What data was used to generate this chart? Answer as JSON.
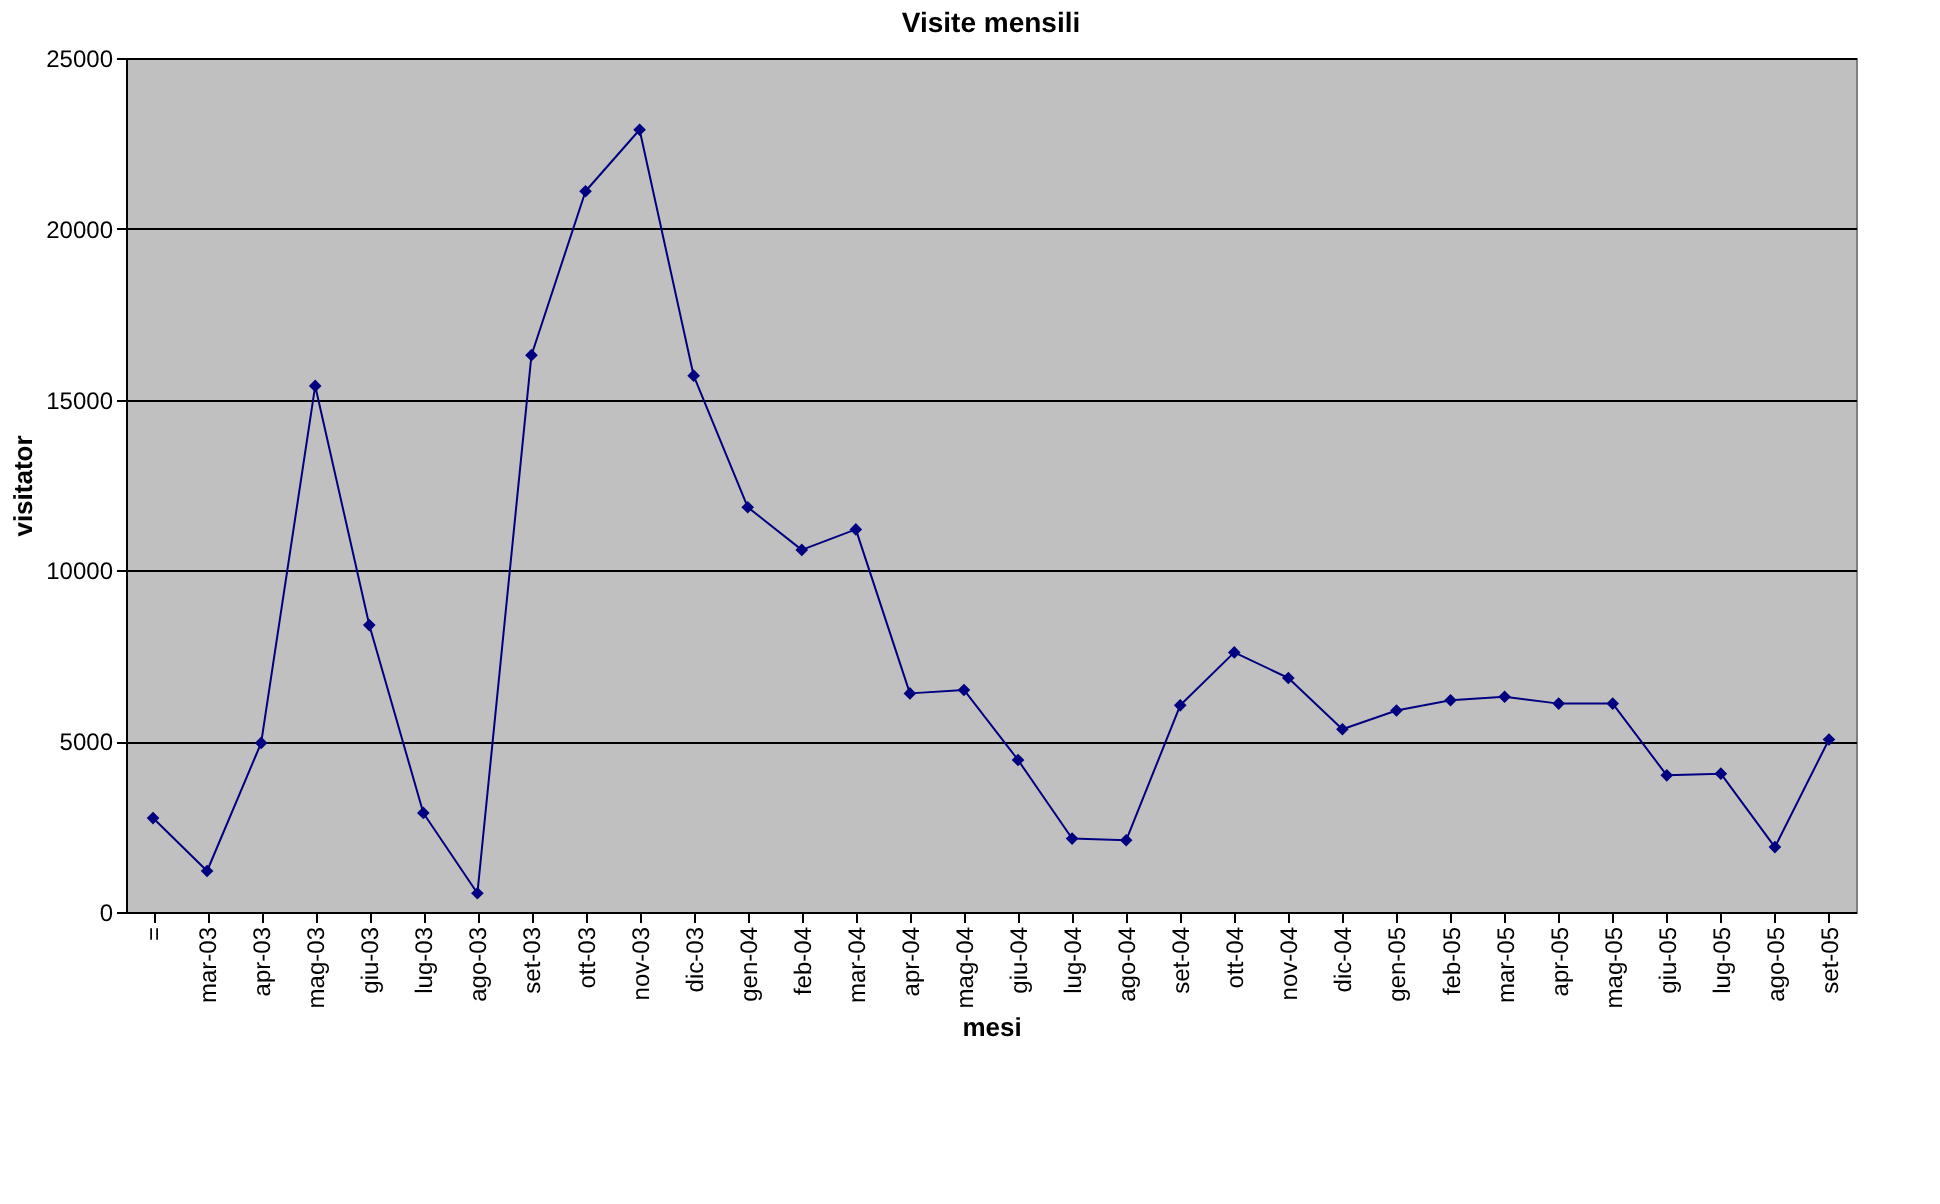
{
  "chart_data": {
    "type": "line",
    "title": "Visite mensili",
    "xlabel": "mesi",
    "ylabel": "visitator",
    "categories": [
      "=",
      "mar-03",
      "apr-03",
      "mag-03",
      "giu-03",
      "lug-03",
      "ago-03",
      "set-03",
      "ott-03",
      "nov-03",
      "dic-03",
      "gen-04",
      "feb-04",
      "mar-04",
      "apr-04",
      "mag-04",
      "giu-04",
      "lug-04",
      "ago-04",
      "set-04",
      "ott-04",
      "nov-04",
      "dic-04",
      "gen-05",
      "feb-05",
      "mar-05",
      "apr-05",
      "mag-05",
      "giu-05",
      "lug-05",
      "ago-05",
      "set-05"
    ],
    "series": [
      {
        "color": "#000080",
        "values": [
          2750,
          1200,
          4950,
          15400,
          8400,
          2900,
          550,
          16300,
          21100,
          22900,
          15700,
          11850,
          10600,
          11200,
          6400,
          6500,
          4450,
          2150,
          2100,
          6050,
          7600,
          6850,
          5350,
          5900,
          6200,
          6300,
          6100,
          6100,
          4000,
          4050,
          1900,
          5050
        ]
      }
    ],
    "ylim": [
      0,
      25000
    ],
    "yticks": [
      0,
      5000,
      10000,
      15000,
      20000,
      25000
    ],
    "grid": "y",
    "legend": false,
    "marker": "diamond",
    "line_style": "solid"
  }
}
